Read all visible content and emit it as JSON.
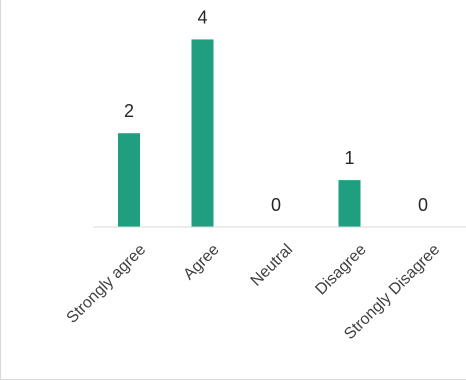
{
  "chart_data": {
    "type": "bar",
    "title": "",
    "xlabel": "",
    "ylabel": "",
    "categories": [
      "Strongly agree",
      "Agree",
      "Neutral",
      "Disagree",
      "Strongly Disagree"
    ],
    "values": [
      2,
      4,
      0,
      1,
      0
    ],
    "data_labels": [
      "2",
      "4",
      "0",
      "1",
      "0"
    ],
    "ylim": [
      0,
      4.5
    ],
    "grid": false,
    "legend": "none",
    "colors": {
      "bar": "#1f9e80",
      "axis": "#d9d9d9",
      "label": "#262626",
      "tick": "#404040"
    }
  }
}
